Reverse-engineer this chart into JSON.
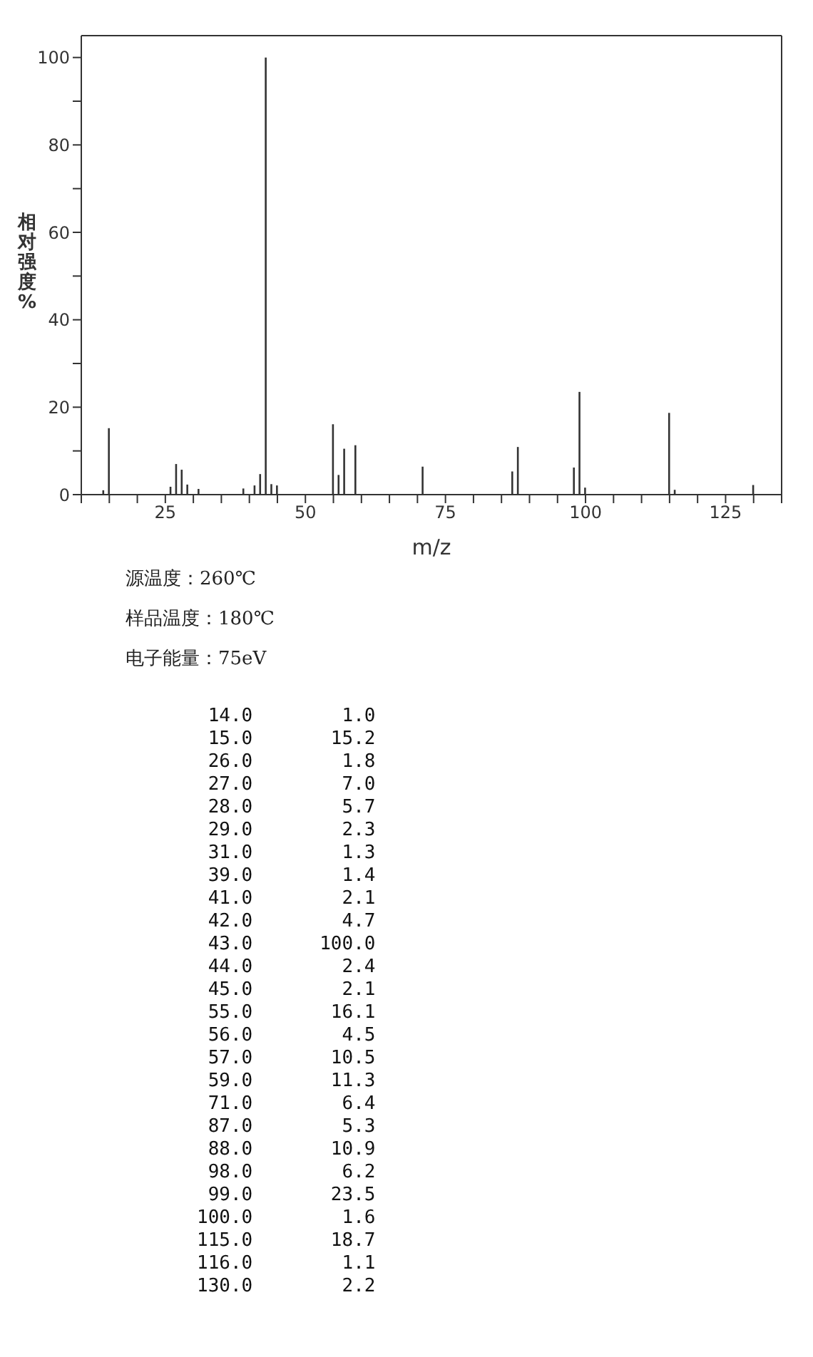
{
  "chart_data": {
    "type": "bar",
    "xlabel": "m/z",
    "ylabel": "相对强度%",
    "x": [
      14,
      15,
      26,
      27,
      28,
      29,
      31,
      39,
      41,
      42,
      43,
      44,
      45,
      55,
      56,
      57,
      59,
      71,
      87,
      88,
      98,
      99,
      100,
      115,
      116,
      130
    ],
    "values": [
      1.0,
      15.2,
      1.8,
      7.0,
      5.7,
      2.3,
      1.3,
      1.4,
      2.1,
      4.7,
      100.0,
      2.4,
      2.1,
      16.1,
      4.5,
      10.5,
      11.3,
      6.4,
      5.3,
      10.9,
      6.2,
      23.5,
      1.6,
      18.7,
      1.1,
      2.2
    ],
    "color": "#333333",
    "xlim": [
      10,
      135
    ],
    "xticks": [
      {
        "value": 10,
        "label": null
      },
      {
        "value": 15,
        "label": null
      },
      {
        "value": 20,
        "label": null
      },
      25,
      {
        "value": 30,
        "label": null
      },
      {
        "value": 35,
        "label": null
      },
      {
        "value": 40,
        "label": null
      },
      {
        "value": 45,
        "label": null
      },
      50,
      {
        "value": 55,
        "label": null
      },
      {
        "value": 60,
        "label": null
      },
      {
        "value": 65,
        "label": null
      },
      {
        "value": 70,
        "label": null
      },
      75,
      {
        "value": 80,
        "label": null
      },
      {
        "value": 85,
        "label": null
      },
      {
        "value": 90,
        "label": null
      },
      {
        "value": 95,
        "label": null
      },
      100,
      {
        "value": 105,
        "label": null
      },
      {
        "value": 110,
        "label": null
      },
      {
        "value": 115,
        "label": null
      },
      {
        "value": 120,
        "label": null
      },
      125,
      {
        "value": 130,
        "label": null
      },
      {
        "value": 135,
        "label": null
      }
    ],
    "ylim": [
      0,
      105
    ],
    "yticks": [
      0,
      {
        "value": 10,
        "label": null
      },
      20,
      {
        "value": 30,
        "label": null
      },
      40,
      {
        "value": 50,
        "label": null
      },
      60,
      {
        "value": 70,
        "label": null
      },
      80,
      {
        "value": 90,
        "label": null
      },
      100
    ],
    "annotations": [
      "源温度：260℃",
      "样品温度：180℃",
      "电子能量：75eV",
      "14.0 1.0",
      "15.0 15.2",
      "26.0 1.8",
      "27.0 7.0",
      "28.0 5.7",
      "29.0 2.3",
      "31.0 1.3",
      "39.0 1.4",
      "41.0 2.1",
      "42.0 4.7",
      "43.0 100.0",
      "44.0 2.4",
      "45.0 2.1",
      "55.0 16.1",
      "56.0 4.5",
      "57.0 10.5",
      "59.0 11.3",
      "71.0 6.4",
      "87.0 5.3",
      "88.0 10.9",
      "98.0 6.2",
      "99.0 23.5",
      "100.0 1.6",
      "115.0 18.7",
      "116.0 1.1",
      "130.0 2.2"
    ]
  }
}
